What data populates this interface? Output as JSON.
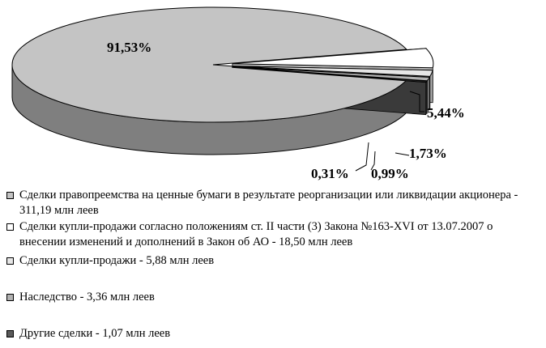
{
  "chart_data": {
    "type": "pie",
    "title": "",
    "slices": [
      {
        "label": "91,53%",
        "value": 91.53,
        "color": "#c4c4c4",
        "side": "#7f7f7f"
      },
      {
        "label": "5,44%",
        "value": 5.44,
        "color": "#ffffff",
        "side": "#bcbcbc"
      },
      {
        "label": "1,73%",
        "value": 1.73,
        "color": "#e6e6e6",
        "side": "#a9a9a9"
      },
      {
        "label": "0,99%",
        "value": 0.99,
        "color": "#b2b2b2",
        "side": "#6f6f6f"
      },
      {
        "label": "0,31%",
        "value": 0.31,
        "color": "#5a5a5a",
        "side": "#3a3a3a"
      }
    ]
  },
  "legend": [
    {
      "text": "Сделки правопреемства на ценные бумаги в результате реорганизации или ликвидации акционера - 311,19 млн леев",
      "color": "#c4c4c4"
    },
    {
      "text": "Сделки купли-продажи согласно положениям ст. II части (3) Закона №163-XVI от 13.07.2007 о внесении изменений и дополнений в Закон об АО - 18,50 млн леев",
      "color": "#ffffff"
    },
    {
      "text": "Сделки купли-продажи - 5,88 млн леев",
      "color": "#e6e6e6"
    },
    {
      "text": "Наследство - 3,36 млн леев",
      "color": "#b2b2b2"
    },
    {
      "text": "Другие сделки - 1,07 млн леев",
      "color": "#5a5a5a"
    }
  ]
}
